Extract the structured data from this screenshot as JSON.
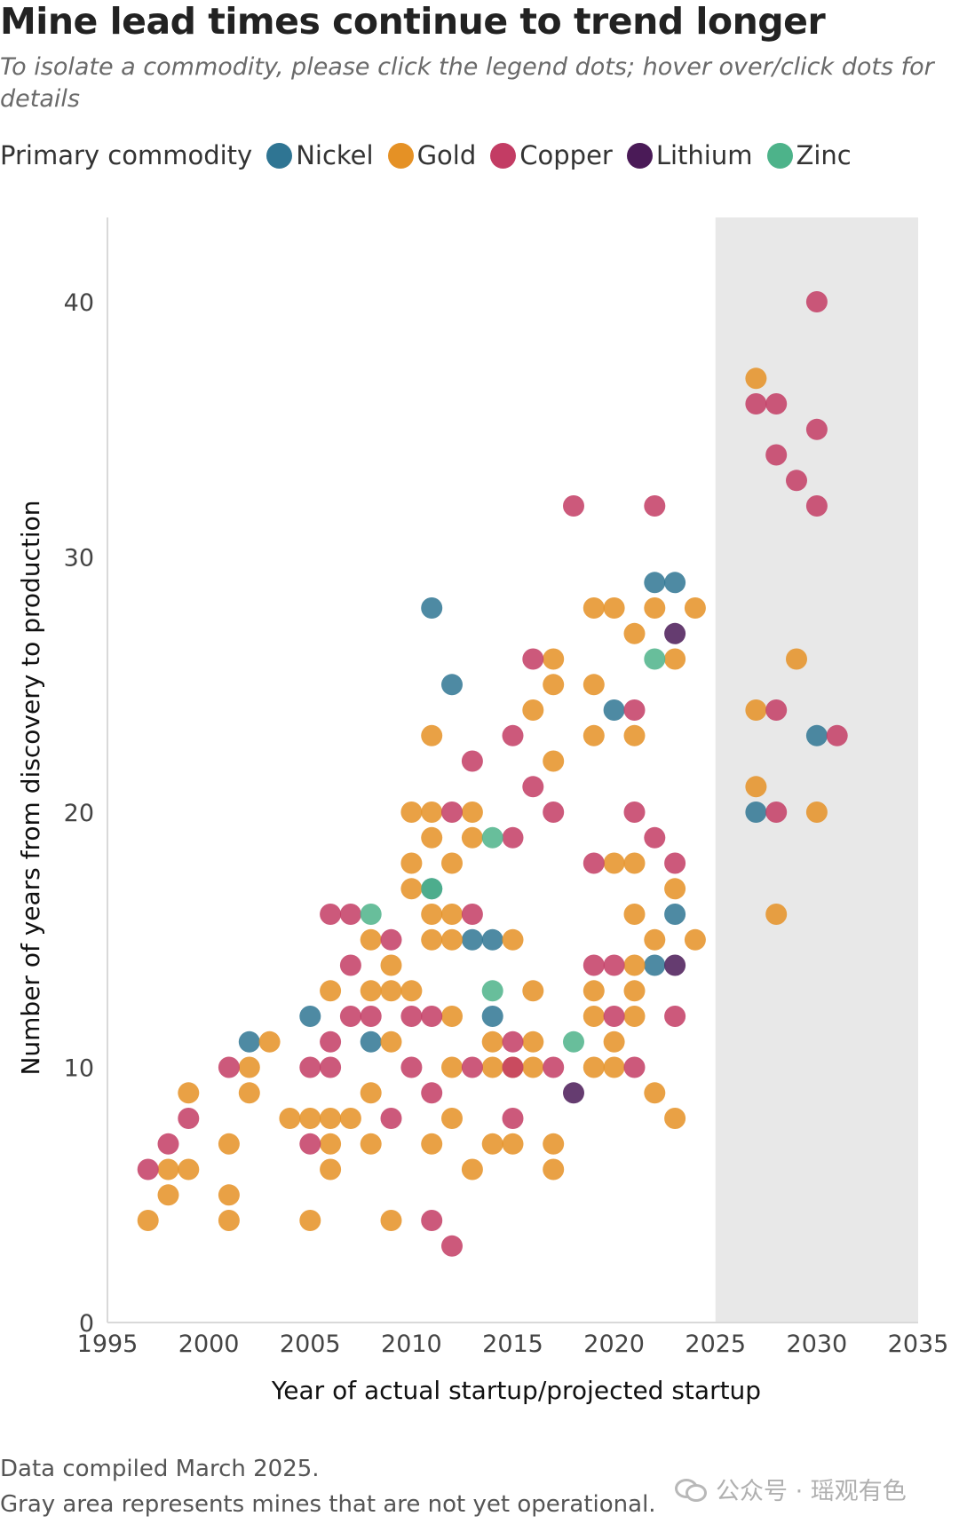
{
  "header": {
    "title": "Mine lead times continue to trend longer",
    "subtitle": "To isolate a commodity, please click the legend dots; hover over/click dots for details"
  },
  "legend": {
    "label": "Primary commodity",
    "items": [
      {
        "name": "Nickel",
        "color": "#2f7593"
      },
      {
        "name": "Gold",
        "color": "#e59125"
      },
      {
        "name": "Copper",
        "color": "#c33c64"
      },
      {
        "name": "Lithium",
        "color": "#4a1a57"
      },
      {
        "name": "Zinc",
        "color": "#4db38a"
      }
    ]
  },
  "notes": {
    "line1": "Data compiled March 2025.",
    "line2": "Gray area represents mines that are not yet operational."
  },
  "watermark": "公众号 · 瑶观有色",
  "chart_data": {
    "type": "scatter",
    "title": "Mine lead times continue to trend longer",
    "xlabel": "Year of actual startup/projected startup",
    "ylabel": "Number of years from discovery to production",
    "xlim": [
      1995,
      2035
    ],
    "ylim": [
      0,
      43
    ],
    "xticks": [
      1995,
      2000,
      2005,
      2010,
      2015,
      2020,
      2025,
      2030,
      2035
    ],
    "yticks": [
      0,
      10,
      20,
      30,
      40
    ],
    "shaded_region": {
      "x_from": 2025,
      "x_to": 2035,
      "meaning": "not yet operational"
    },
    "series": [
      {
        "name": "Nickel",
        "points": [
          [
            2002,
            11
          ],
          [
            2005,
            12
          ],
          [
            2008,
            11
          ],
          [
            2011,
            17
          ],
          [
            2011,
            28
          ],
          [
            2012,
            25
          ],
          [
            2013,
            15
          ],
          [
            2014,
            15
          ],
          [
            2014,
            12
          ],
          [
            2020,
            24
          ],
          [
            2022,
            29
          ],
          [
            2022,
            14
          ],
          [
            2023,
            29
          ],
          [
            2023,
            16
          ],
          [
            2027,
            20
          ],
          [
            2030,
            23
          ]
        ]
      },
      {
        "name": "Gold",
        "points": [
          [
            1997,
            4
          ],
          [
            1998,
            5
          ],
          [
            1998,
            6
          ],
          [
            1999,
            9
          ],
          [
            1999,
            6
          ],
          [
            2001,
            7
          ],
          [
            2001,
            5
          ],
          [
            2001,
            4
          ],
          [
            2002,
            10
          ],
          [
            2002,
            9
          ],
          [
            2003,
            11
          ],
          [
            2004,
            8
          ],
          [
            2005,
            8
          ],
          [
            2005,
            4
          ],
          [
            2006,
            8
          ],
          [
            2006,
            7
          ],
          [
            2006,
            6
          ],
          [
            2006,
            13
          ],
          [
            2007,
            8
          ],
          [
            2008,
            15
          ],
          [
            2008,
            13
          ],
          [
            2008,
            9
          ],
          [
            2008,
            7
          ],
          [
            2009,
            14
          ],
          [
            2009,
            13
          ],
          [
            2009,
            11
          ],
          [
            2009,
            4
          ],
          [
            2010,
            20
          ],
          [
            2010,
            18
          ],
          [
            2010,
            17
          ],
          [
            2010,
            13
          ],
          [
            2011,
            23
          ],
          [
            2011,
            20
          ],
          [
            2011,
            19
          ],
          [
            2011,
            16
          ],
          [
            2011,
            15
          ],
          [
            2011,
            7
          ],
          [
            2012,
            18
          ],
          [
            2012,
            16
          ],
          [
            2012,
            15
          ],
          [
            2012,
            12
          ],
          [
            2012,
            10
          ],
          [
            2012,
            8
          ],
          [
            2013,
            20
          ],
          [
            2013,
            19
          ],
          [
            2013,
            6
          ],
          [
            2014,
            11
          ],
          [
            2014,
            10
          ],
          [
            2014,
            7
          ],
          [
            2015,
            15
          ],
          [
            2015,
            10
          ],
          [
            2015,
            7
          ],
          [
            2016,
            24
          ],
          [
            2016,
            13
          ],
          [
            2016,
            11
          ],
          [
            2016,
            10
          ],
          [
            2017,
            26
          ],
          [
            2017,
            25
          ],
          [
            2017,
            22
          ],
          [
            2017,
            7
          ],
          [
            2017,
            6
          ],
          [
            2019,
            28
          ],
          [
            2019,
            25
          ],
          [
            2019,
            23
          ],
          [
            2019,
            13
          ],
          [
            2019,
            12
          ],
          [
            2019,
            10
          ],
          [
            2020,
            28
          ],
          [
            2020,
            18
          ],
          [
            2020,
            11
          ],
          [
            2020,
            10
          ],
          [
            2021,
            27
          ],
          [
            2021,
            23
          ],
          [
            2021,
            18
          ],
          [
            2021,
            16
          ],
          [
            2021,
            14
          ],
          [
            2021,
            13
          ],
          [
            2021,
            12
          ],
          [
            2022,
            28
          ],
          [
            2022,
            15
          ],
          [
            2022,
            9
          ],
          [
            2023,
            26
          ],
          [
            2023,
            17
          ],
          [
            2023,
            8
          ],
          [
            2024,
            28
          ],
          [
            2024,
            15
          ],
          [
            2027,
            37
          ],
          [
            2027,
            24
          ],
          [
            2027,
            21
          ],
          [
            2028,
            16
          ],
          [
            2029,
            26
          ],
          [
            2030,
            20
          ]
        ]
      },
      {
        "name": "Copper",
        "points": [
          [
            1997,
            6
          ],
          [
            1998,
            7
          ],
          [
            1999,
            8
          ],
          [
            2001,
            10
          ],
          [
            2005,
            10
          ],
          [
            2005,
            7
          ],
          [
            2006,
            16
          ],
          [
            2006,
            11
          ],
          [
            2006,
            10
          ],
          [
            2007,
            16
          ],
          [
            2007,
            14
          ],
          [
            2007,
            12
          ],
          [
            2008,
            12
          ],
          [
            2009,
            15
          ],
          [
            2009,
            8
          ],
          [
            2010,
            12
          ],
          [
            2010,
            10
          ],
          [
            2011,
            12
          ],
          [
            2011,
            9
          ],
          [
            2011,
            4
          ],
          [
            2012,
            20
          ],
          [
            2012,
            3
          ],
          [
            2013,
            22
          ],
          [
            2013,
            16
          ],
          [
            2013,
            10
          ],
          [
            2015,
            23
          ],
          [
            2015,
            19
          ],
          [
            2015,
            11
          ],
          [
            2015,
            10
          ],
          [
            2015,
            8
          ],
          [
            2016,
            26
          ],
          [
            2016,
            21
          ],
          [
            2017,
            20
          ],
          [
            2017,
            10
          ],
          [
            2018,
            32
          ],
          [
            2019,
            18
          ],
          [
            2019,
            14
          ],
          [
            2020,
            14
          ],
          [
            2020,
            12
          ],
          [
            2021,
            24
          ],
          [
            2021,
            20
          ],
          [
            2021,
            10
          ],
          [
            2022,
            32
          ],
          [
            2022,
            19
          ],
          [
            2023,
            18
          ],
          [
            2023,
            12
          ],
          [
            2027,
            36
          ],
          [
            2028,
            36
          ],
          [
            2028,
            34
          ],
          [
            2028,
            24
          ],
          [
            2028,
            20
          ],
          [
            2029,
            33
          ],
          [
            2030,
            40
          ],
          [
            2030,
            35
          ],
          [
            2030,
            32
          ],
          [
            2031,
            23
          ]
        ]
      },
      {
        "name": "Lithium",
        "points": [
          [
            2018,
            9
          ],
          [
            2023,
            27
          ],
          [
            2023,
            14
          ]
        ]
      },
      {
        "name": "Zinc",
        "points": [
          [
            2008,
            16
          ],
          [
            2011,
            17
          ],
          [
            2014,
            19
          ],
          [
            2014,
            13
          ],
          [
            2018,
            11
          ],
          [
            2022,
            26
          ]
        ]
      }
    ]
  }
}
